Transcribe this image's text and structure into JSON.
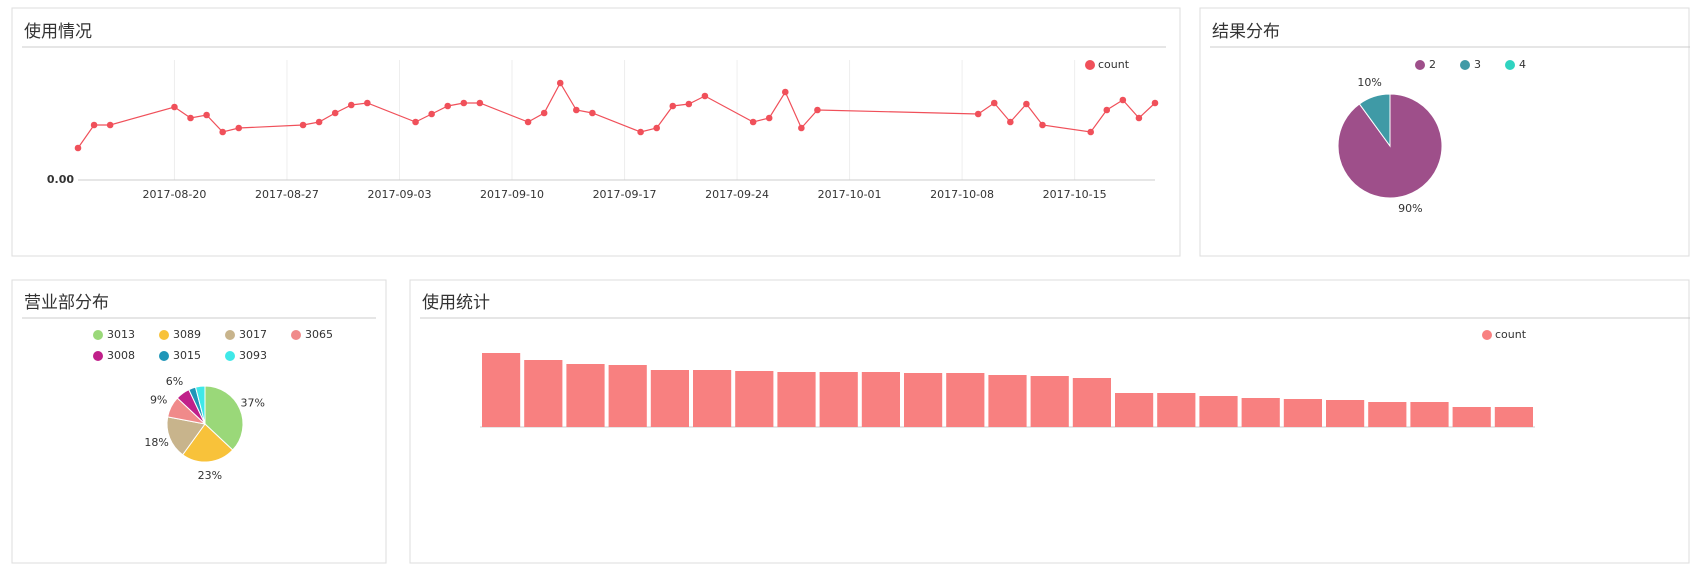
{
  "chart_data": [
    {
      "type": "line",
      "title": "使用情况",
      "x": [
        "2017-08-14",
        "2017-08-15",
        "2017-08-16",
        "2017-08-20",
        "2017-08-21",
        "2017-08-22",
        "2017-08-23",
        "2017-08-24",
        "2017-08-28",
        "2017-08-29",
        "2017-08-30",
        "2017-08-31",
        "2017-09-01",
        "2017-09-04",
        "2017-09-05",
        "2017-09-06",
        "2017-09-07",
        "2017-09-08",
        "2017-09-11",
        "2017-09-12",
        "2017-09-13",
        "2017-09-14",
        "2017-09-15",
        "2017-09-18",
        "2017-09-19",
        "2017-09-20",
        "2017-09-21",
        "2017-09-22",
        "2017-09-25",
        "2017-09-26",
        "2017-09-27",
        "2017-09-28",
        "2017-09-29",
        "2017-10-09",
        "2017-10-10",
        "2017-10-11",
        "2017-10-12",
        "2017-10-13",
        "2017-10-16",
        "2017-10-17",
        "2017-10-18",
        "2017-10-19",
        "2017-10-20"
      ],
      "series": [
        {
          "name": "count",
          "color": "#f0505a",
          "values": [
            32,
            55,
            55,
            73,
            62,
            65,
            48,
            52,
            55,
            58,
            67,
            75,
            77,
            58,
            66,
            74,
            77,
            77,
            58,
            67,
            97,
            70,
            67,
            48,
            52,
            74,
            76,
            84,
            58,
            62,
            88,
            52,
            70,
            66,
            77,
            58,
            76,
            55,
            48,
            70,
            80,
            62,
            77
          ]
        }
      ],
      "xlim": [
        "2017-08-14",
        "2017-10-20"
      ],
      "xticks": [
        "2017-08-20",
        "2017-08-27",
        "2017-09-03",
        "2017-09-10",
        "2017-09-17",
        "2017-09-24",
        "2017-10-01",
        "2017-10-08",
        "2017-10-15"
      ],
      "ylim": [
        0,
        110
      ],
      "yticks": [
        {
          "value": 0,
          "label": "0.00"
        }
      ],
      "grid": true,
      "legend": "top-right"
    },
    {
      "type": "pie",
      "title": "结果分布",
      "categories": [
        "2",
        "3",
        "4"
      ],
      "values": [
        90,
        10,
        0
      ],
      "value_labels": [
        "90%",
        "10%",
        null
      ],
      "colors": [
        "#9e4f8a",
        "#3f9aa6",
        "#2fd3c0"
      ],
      "legend": "top"
    },
    {
      "type": "pie",
      "title": "营业部分布",
      "categories": [
        "3013",
        "3089",
        "3017",
        "3065",
        "3008",
        "3015",
        "3093"
      ],
      "values": [
        37,
        23,
        18,
        9,
        6,
        3,
        4
      ],
      "value_labels": [
        "37%",
        "23%",
        "18%",
        "9%",
        "6%",
        null,
        null
      ],
      "colors": [
        "#9ad879",
        "#f8c23a",
        "#c8b48c",
        "#f08a8a",
        "#c0208a",
        "#1f96b8",
        "#3fe8e8"
      ],
      "legend": "top"
    },
    {
      "type": "bar",
      "title": "使用统计",
      "categories": [
        null,
        null,
        null,
        null,
        null,
        null,
        null,
        null,
        null,
        null,
        null,
        null,
        null,
        null,
        null,
        null,
        null,
        null,
        null,
        null,
        null,
        null,
        null,
        null,
        null
      ],
      "series": [
        {
          "name": "count",
          "color": "#f88080",
          "values": [
            74,
            67,
            63,
            62,
            57,
            57,
            56,
            55,
            55,
            55,
            54,
            54,
            52,
            51,
            49,
            34,
            34,
            31,
            29,
            28,
            27,
            25,
            25,
            20,
            20
          ]
        }
      ],
      "ylim": [
        0,
        80
      ],
      "legend": "top-right"
    }
  ]
}
